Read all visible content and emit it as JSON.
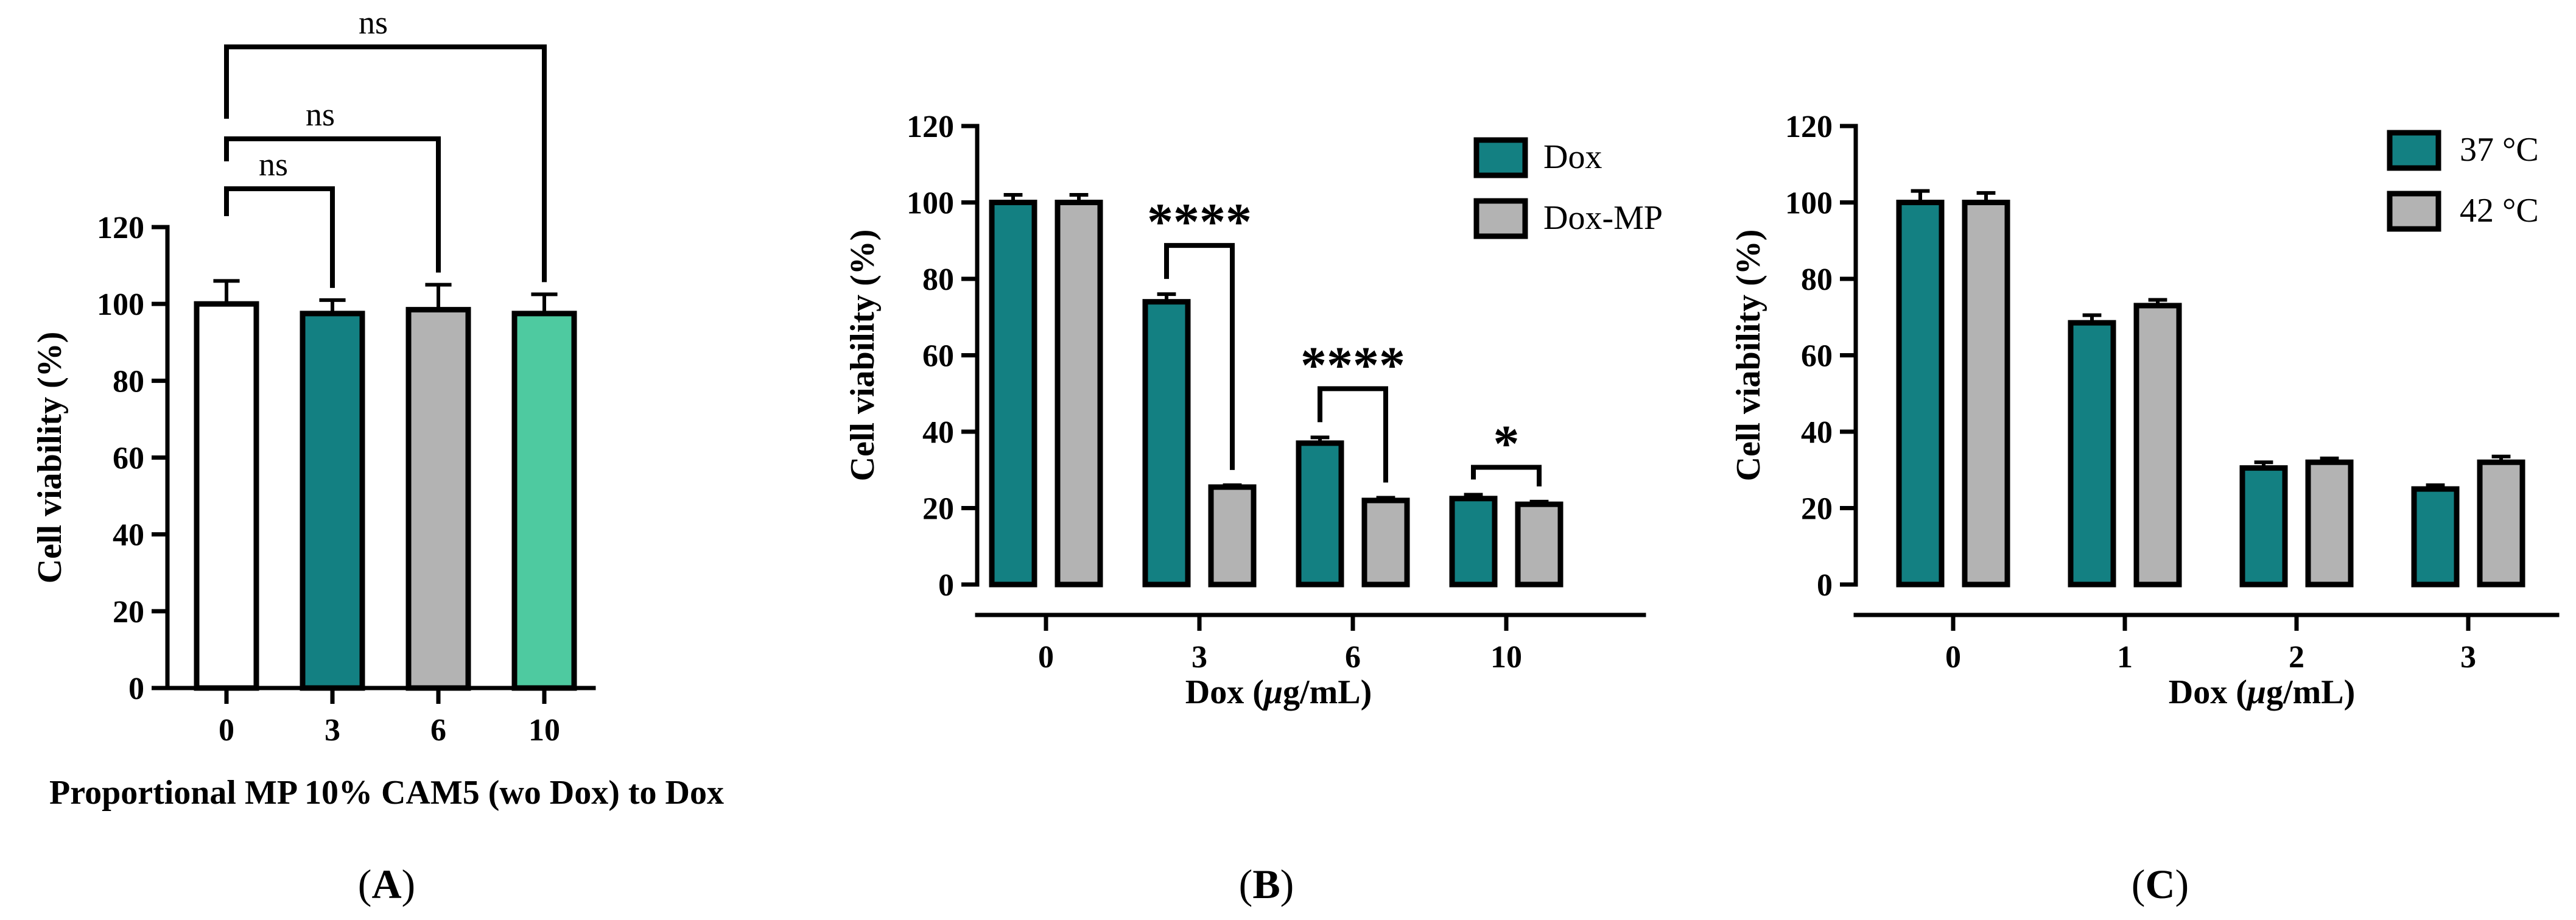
{
  "figure": {
    "panel_labels": [
      {
        "open": "(",
        "letter": "A",
        "close": ")"
      },
      {
        "open": "(",
        "letter": "B",
        "close": ")"
      },
      {
        "open": "(",
        "letter": "C",
        "close": ")"
      }
    ]
  },
  "chart_data": [
    {
      "type": "bar",
      "panel": "A",
      "categories": [
        "0",
        "3",
        "6",
        "10"
      ],
      "values": [
        100,
        97.5,
        98.5,
        97.5
      ],
      "errors": [
        6,
        3.5,
        6.5,
        5
      ],
      "colors": [
        "#ffffff",
        "#138082",
        "#b3b3b3",
        "#4ecaa0"
      ],
      "ylabel": "Cell viability (%)",
      "xlabel": "Proportional MP 10% CAM5 (wo Dox) to Dox",
      "ylim": [
        0,
        120
      ],
      "yticks": [
        "0",
        "20",
        "40",
        "60",
        "80",
        "100",
        "120"
      ],
      "comparisons": [
        {
          "from": "0",
          "to": "3",
          "label": "ns"
        },
        {
          "from": "0",
          "to": "6",
          "label": "ns"
        },
        {
          "from": "0",
          "to": "10",
          "label": "ns"
        }
      ]
    },
    {
      "type": "bar",
      "panel": "B",
      "categories": [
        "0",
        "3",
        "6",
        "10"
      ],
      "series": [
        {
          "name": "Dox",
          "color": "#138082",
          "values": [
            100,
            74,
            37,
            22.5
          ],
          "errors": [
            2,
            2,
            1.5,
            1
          ]
        },
        {
          "name": "Dox-MP",
          "color": "#b3b3b3",
          "values": [
            100,
            25.5,
            22,
            21
          ],
          "errors": [
            2,
            0.5,
            0.7,
            0.7
          ]
        }
      ],
      "ylabel": "Cell viability  (%)",
      "xlabel_prefix": "Dox (",
      "xlabel_unit_italic": "μ",
      "xlabel_suffix": "g/mL)",
      "ylim": [
        0,
        120
      ],
      "yticks": [
        "0",
        "20",
        "40",
        "60",
        "80",
        "100",
        "120"
      ],
      "comparisons": [
        {
          "category": "3",
          "label": "****"
        },
        {
          "category": "6",
          "label": "****"
        },
        {
          "category": "10",
          "label": "*"
        }
      ],
      "legend_position": "top-right"
    },
    {
      "type": "bar",
      "panel": "C",
      "categories": [
        "0",
        "1",
        "2",
        "3"
      ],
      "series": [
        {
          "name": "37 °C",
          "color": "#138082",
          "values": [
            100,
            68.5,
            30.5,
            25
          ],
          "errors": [
            3,
            2,
            1.5,
            1
          ]
        },
        {
          "name": "42 °C",
          "color": "#b3b3b3",
          "values": [
            100,
            73,
            32,
            32
          ],
          "errors": [
            2.5,
            1.5,
            1,
            1.5
          ]
        }
      ],
      "ylabel": "Cell viability (%)",
      "xlabel_prefix": "Dox (",
      "xlabel_unit_italic": "μ",
      "xlabel_suffix": "g/mL)",
      "ylim": [
        0,
        120
      ],
      "yticks": [
        "0",
        "20",
        "40",
        "60",
        "80",
        "100",
        "120"
      ],
      "legend_position": "top-right"
    }
  ]
}
